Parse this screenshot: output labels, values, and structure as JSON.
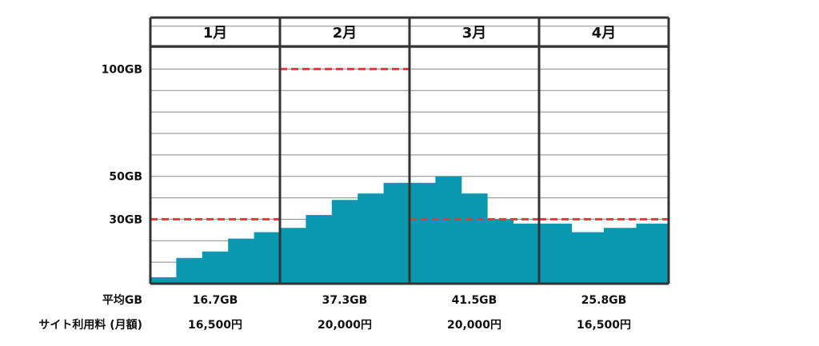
{
  "colors": {
    "bar": "#0A97B0",
    "threshold": "#E8383D",
    "frame": "#333333",
    "grid": "#888888"
  },
  "chart_data": {
    "type": "area",
    "title": "",
    "xlabel": "",
    "ylabel": "",
    "ylim": [
      0,
      125
    ],
    "y_unit": "GB",
    "grid": true,
    "yticks": [
      {
        "value": 30,
        "label": "30GB"
      },
      {
        "value": 50,
        "label": "50GB"
      },
      {
        "value": 100,
        "label": "100GB"
      }
    ],
    "months": [
      {
        "label": "1月",
        "average": "16.7GB",
        "fee": "16,500円",
        "threshold": 30,
        "steps": [
          3,
          12,
          15,
          21,
          24
        ]
      },
      {
        "label": "2月",
        "average": "37.3GB",
        "fee": "20,000円",
        "threshold": 100,
        "steps": [
          26,
          32,
          39,
          42,
          47
        ]
      },
      {
        "label": "3月",
        "average": "41.5GB",
        "fee": "20,000円",
        "threshold": 30,
        "steps": [
          47,
          50,
          42,
          30,
          28
        ]
      },
      {
        "label": "4月",
        "average": "25.8GB",
        "fee": "16,500円",
        "threshold": 30,
        "steps": [
          28,
          24,
          26,
          28
        ]
      }
    ],
    "summary_rows": [
      {
        "label": "平均GB",
        "field": "average"
      },
      {
        "label": "サイト利用料 (月額)",
        "field": "fee"
      }
    ]
  }
}
